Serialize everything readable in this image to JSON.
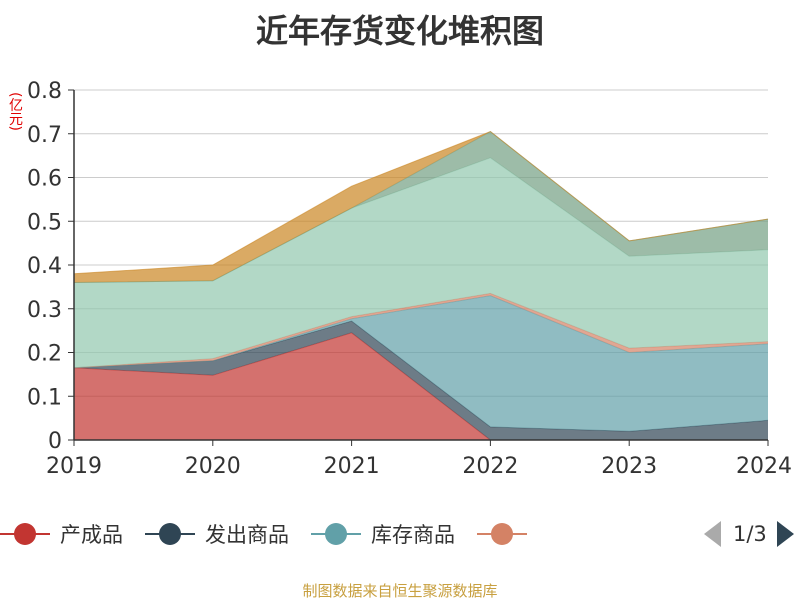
{
  "title": "近年存货变化堆积图",
  "unit_label": "(亿元)",
  "source": "制图数据来自恒生聚源数据库",
  "legend_pager": "1/3",
  "chart_data": {
    "type": "area",
    "stacked": true,
    "title": "近年存货变化堆积图",
    "ylabel": "(亿元)",
    "xlabel": "",
    "x": [
      "2019",
      "2020",
      "2021",
      "2022",
      "2023",
      "2024"
    ],
    "ylim": [
      0,
      0.8
    ],
    "yticks": [
      "0",
      "0.1",
      "0.2",
      "0.3",
      "0.4",
      "0.5",
      "0.6",
      "0.7",
      "0.8"
    ],
    "grid": true,
    "series": [
      {
        "name": "产成品",
        "color": "#c23531",
        "values": [
          0.165,
          0.148,
          0.245,
          0.0,
          0.0,
          0.0
        ]
      },
      {
        "name": "发出商品",
        "color": "#2f4554",
        "values": [
          0.0,
          0.033,
          0.027,
          0.03,
          0.02,
          0.045
        ]
      },
      {
        "name": "库存商品",
        "color": "#61a0a8",
        "values": [
          0.0,
          0.0,
          0.005,
          0.3,
          0.18,
          0.175
        ]
      },
      {
        "color": "#d48265",
        "values": [
          0.0,
          0.005,
          0.005,
          0.005,
          0.01,
          0.005
        ]
      },
      {
        "color": "#91c7ae",
        "values": [
          0.195,
          0.178,
          0.248,
          0.31,
          0.21,
          0.21
        ]
      },
      {
        "color": "#749f83",
        "values": [
          0.0,
          0.0,
          0.0,
          0.06,
          0.035,
          0.07
        ]
      },
      {
        "color": "#ca8622",
        "values": [
          0.02,
          0.036,
          0.05,
          0.0,
          0.0,
          0.0
        ]
      }
    ]
  }
}
